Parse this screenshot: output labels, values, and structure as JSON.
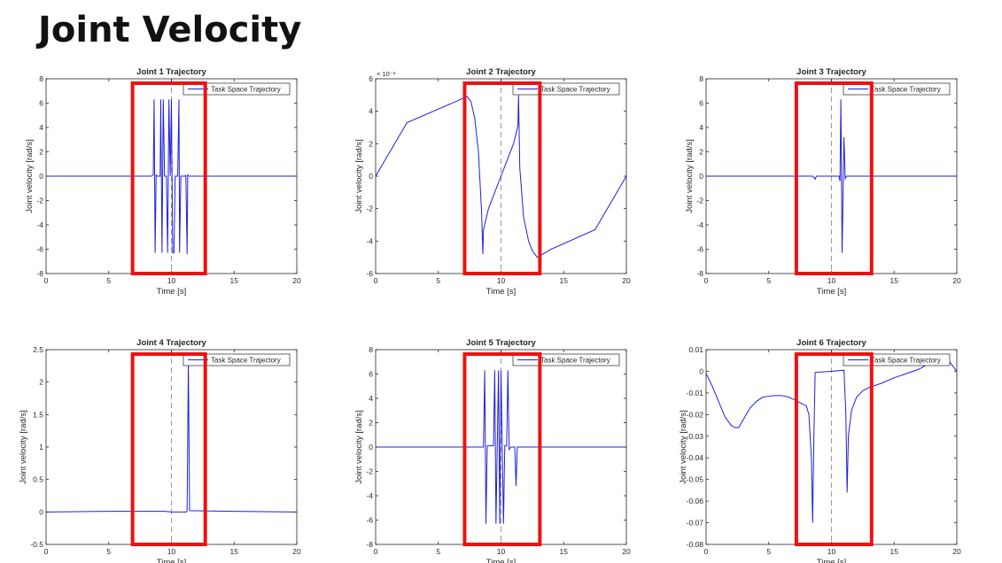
{
  "page": {
    "title": "Joint Velocity"
  },
  "colors": {
    "series": "#1f1fe0",
    "highlight": "#ee1111",
    "reference": "#999999"
  },
  "chart_data": [
    {
      "type": "line",
      "title": "Joint 1 Trajectory",
      "xlabel": "Time [s]",
      "ylabel": "Joint velocity [rad/s]",
      "xlim": [
        0,
        20
      ],
      "ylim": [
        -8,
        8
      ],
      "xticks": [
        0,
        5,
        10,
        15,
        20
      ],
      "yticks": [
        -8,
        -6,
        -4,
        -2,
        0,
        2,
        4,
        6,
        8
      ],
      "scale_label": "",
      "legend": {
        "entries": [
          "Task Space Trajectory"
        ],
        "placement": "top-right"
      },
      "reference_line_x": 10,
      "highlight_range_x": [
        6.9,
        12.7
      ],
      "series": [
        {
          "name": "Task Space Trajectory",
          "x": [
            0,
            8.4,
            8.55,
            8.62,
            8.7,
            8.78,
            8.85,
            9.1,
            9.15,
            9.25,
            9.35,
            9.45,
            9.6,
            9.7,
            9.8,
            9.9,
            10.0,
            10.1,
            10.2,
            10.3,
            10.5,
            10.6,
            10.65,
            10.75,
            10.85,
            11.1,
            11.15,
            11.25,
            11.3,
            11.4,
            11.55,
            20
          ],
          "y": [
            0,
            0,
            0.1,
            6.3,
            -6.3,
            0.1,
            0,
            0,
            6.3,
            -6.3,
            6.3,
            0,
            0,
            -6.3,
            6.3,
            0,
            6.3,
            -6.3,
            -6.3,
            0,
            0,
            6.3,
            -6.3,
            0,
            0,
            0,
            0.1,
            -6.4,
            0.1,
            0,
            0,
            0
          ]
        }
      ]
    },
    {
      "type": "line",
      "title": "Joint 2 Trajectory",
      "xlabel": "Time [s]",
      "ylabel": "Joint velocity [rad/s]",
      "xlim": [
        0,
        20
      ],
      "ylim": [
        -6,
        6
      ],
      "xticks": [
        0,
        5,
        10,
        15,
        20
      ],
      "yticks": [
        -6,
        -4,
        -2,
        0,
        2,
        4,
        6
      ],
      "scale_label": "× 10⁻³",
      "legend": {
        "entries": [
          "Task Space Trajectory"
        ],
        "placement": "top-right"
      },
      "reference_line_x": 10,
      "highlight_range_x": [
        7.1,
        13.1
      ],
      "series": [
        {
          "name": "Task Space Trajectory",
          "x": [
            0,
            2.5,
            7.3,
            7.6,
            7.9,
            8.2,
            8.45,
            8.55,
            8.6,
            9.0,
            10.0,
            11.0,
            11.35,
            11.4,
            11.5,
            11.8,
            12.2,
            12.5,
            12.9,
            14.0,
            17.5,
            20
          ],
          "y": [
            0,
            3.3,
            4.9,
            4.6,
            3.6,
            1.5,
            -2.2,
            -4.8,
            -3.3,
            -2.0,
            0.0,
            2.0,
            3.1,
            5.0,
            0.5,
            -2.5,
            -4.0,
            -4.6,
            -5.0,
            -4.5,
            -3.3,
            0
          ]
        }
      ]
    },
    {
      "type": "line",
      "title": "Joint 3 Trajectory",
      "xlabel": "Time [s]",
      "ylabel": "Joint velocity [rad/s]",
      "xlim": [
        0,
        20
      ],
      "ylim": [
        -8,
        8
      ],
      "xticks": [
        0,
        5,
        10,
        15,
        20
      ],
      "yticks": [
        -8,
        -6,
        -4,
        -2,
        0,
        2,
        4,
        6,
        8
      ],
      "scale_label": "",
      "legend": {
        "entries": [
          "Task Space Trajectory"
        ],
        "placement": "top-right"
      },
      "reference_line_x": 10,
      "highlight_range_x": [
        7.2,
        13.2
      ],
      "series": [
        {
          "name": "Task Space Trajectory",
          "x": [
            0,
            8.5,
            8.6,
            8.7,
            8.8,
            10.5,
            10.6,
            10.68,
            10.75,
            10.85,
            11.0,
            11.1,
            11.2,
            11.3,
            20
          ],
          "y": [
            0,
            0,
            -0.1,
            -0.25,
            0,
            0,
            0,
            -0.4,
            6.3,
            -6.3,
            3.2,
            -0.2,
            0,
            0,
            0
          ]
        }
      ]
    },
    {
      "type": "line",
      "title": "Joint 4 Trajectory",
      "xlabel": "Time [s]",
      "ylabel": "Joint velocity [rad/s]",
      "xlim": [
        0,
        20
      ],
      "ylim": [
        -0.5,
        2.5
      ],
      "xticks": [
        0,
        5,
        10,
        15,
        20
      ],
      "yticks": [
        -0.5,
        0,
        0.5,
        1,
        1.5,
        2,
        2.5
      ],
      "scale_label": "",
      "legend": {
        "entries": [
          "Task Space Trajectory"
        ],
        "placement": "top-right"
      },
      "reference_line_x": 10,
      "highlight_range_x": [
        6.9,
        12.7
      ],
      "series": [
        {
          "name": "Task Space Trajectory",
          "x": [
            0,
            5,
            9.5,
            10.0,
            11.2,
            11.25,
            11.35,
            11.45,
            15,
            20
          ],
          "y": [
            0,
            0.01,
            0.01,
            0,
            0,
            0.02,
            2.3,
            0.02,
            0.01,
            0
          ]
        }
      ]
    },
    {
      "type": "line",
      "title": "Joint 5 Trajectory",
      "xlabel": "Time [s]",
      "ylabel": "Joint velocity [rad/s]",
      "xlim": [
        0,
        20
      ],
      "ylim": [
        -8,
        8
      ],
      "xticks": [
        0,
        5,
        10,
        15,
        20
      ],
      "yticks": [
        -8,
        -6,
        -4,
        -2,
        0,
        2,
        4,
        6,
        8
      ],
      "scale_label": "",
      "legend": {
        "entries": [
          "Task Space Trajectory"
        ],
        "placement": "top-right"
      },
      "reference_line_x": 10,
      "highlight_range_x": [
        7.1,
        13.1
      ],
      "series": [
        {
          "name": "Task Space Trajectory",
          "x": [
            0,
            8.6,
            8.7,
            8.8,
            8.9,
            9.4,
            9.5,
            9.6,
            9.7,
            9.8,
            9.9,
            10.0,
            10.1,
            10.2,
            10.3,
            10.45,
            10.55,
            10.65,
            10.8,
            11.1,
            11.2,
            11.3,
            11.4,
            12.0,
            20
          ],
          "y": [
            0,
            0,
            6.3,
            -6.3,
            0.1,
            0.1,
            6.3,
            -6.3,
            0,
            6.3,
            -6.3,
            6.3,
            0,
            -6.3,
            0.1,
            0.1,
            6.3,
            -0.2,
            0,
            0,
            -3.2,
            0,
            0,
            0,
            0
          ]
        }
      ]
    },
    {
      "type": "line",
      "title": "Joint 6 Trajectory",
      "xlabel": "Time [s]",
      "ylabel": "Joint velocity [rad/s]",
      "xlim": [
        0,
        20
      ],
      "ylim": [
        -0.08,
        0.01
      ],
      "xticks": [
        0,
        5,
        10,
        15,
        20
      ],
      "yticks": [
        -0.08,
        -0.07,
        -0.06,
        -0.05,
        -0.04,
        -0.03,
        -0.02,
        -0.01,
        0,
        0.01
      ],
      "scale_label": "",
      "legend": {
        "entries": [
          "Task Space Trajectory"
        ],
        "placement": "top-right"
      },
      "reference_line_x": 10,
      "highlight_range_x": [
        7.2,
        13.2
      ],
      "series": [
        {
          "name": "Task Space Trajectory",
          "x": [
            0,
            0.5,
            1.0,
            1.5,
            2.0,
            2.3,
            2.6,
            3.0,
            3.5,
            4.0,
            4.5,
            5.0,
            5.5,
            6.0,
            6.5,
            7.0,
            7.5,
            8.0,
            8.2,
            8.4,
            8.5,
            8.6,
            8.7,
            10.0,
            11.0,
            11.15,
            11.25,
            11.35,
            11.6,
            12.0,
            12.5,
            13.0,
            14.0,
            15.0,
            16.0,
            17.0,
            17.6,
            18.2,
            18.7,
            19.2,
            19.6,
            20.0
          ],
          "y": [
            -0.001,
            -0.007,
            -0.014,
            -0.021,
            -0.025,
            -0.026,
            -0.026,
            -0.022,
            -0.017,
            -0.014,
            -0.012,
            -0.0115,
            -0.0112,
            -0.0112,
            -0.0118,
            -0.013,
            -0.0145,
            -0.016,
            -0.02,
            -0.04,
            -0.07,
            -0.03,
            -0.0005,
            0.0,
            0.0005,
            -0.02,
            -0.056,
            -0.03,
            -0.018,
            -0.012,
            -0.009,
            -0.0075,
            -0.0055,
            -0.003,
            -0.001,
            0.001,
            0.003,
            0.0055,
            0.0065,
            0.006,
            0.003,
            0.0
          ]
        }
      ]
    }
  ]
}
